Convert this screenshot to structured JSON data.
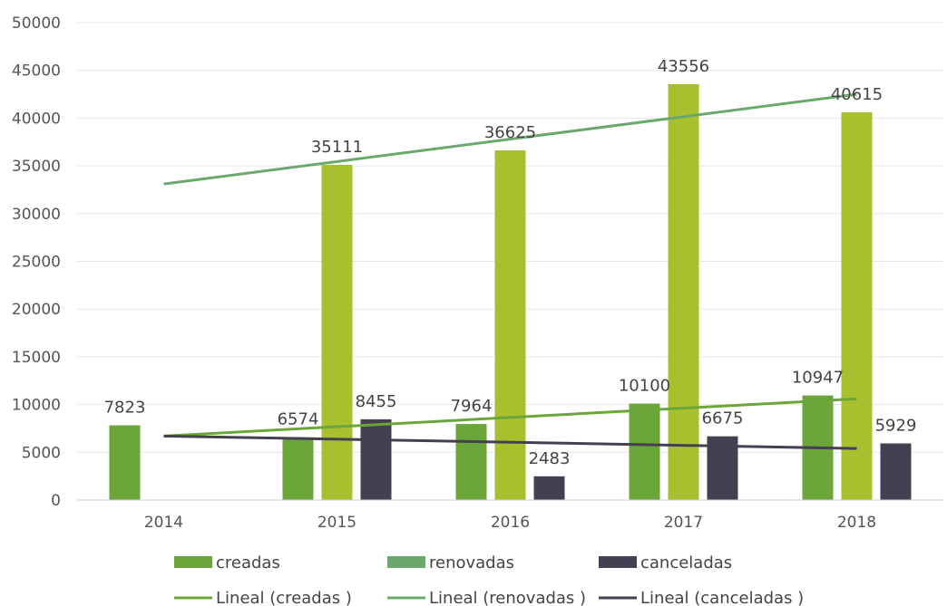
{
  "chart_data": {
    "type": "bar",
    "categories": [
      "2014",
      "2015",
      "2016",
      "2017",
      "2018"
    ],
    "ylim": [
      0,
      50000
    ],
    "yticks": [
      0,
      5000,
      10000,
      15000,
      20000,
      25000,
      30000,
      35000,
      40000,
      45000,
      50000
    ],
    "grid": true,
    "legend_position": "bottom",
    "series": [
      {
        "name": "creadas",
        "values": [
          7823,
          6574,
          7964,
          10100,
          10947
        ],
        "color": "#6aa63a"
      },
      {
        "name": "renovadas",
        "values": [
          null,
          35111,
          36625,
          43556,
          40615
        ],
        "color": "#a8bf2e",
        "legend_color": "#6aa86e"
      },
      {
        "name": "canceladas",
        "values": [
          null,
          8455,
          2483,
          6675,
          5929
        ],
        "color": "#453f52"
      }
    ],
    "trendlines": [
      {
        "name": "Lineal (creadas )",
        "series": "creadas",
        "start": 6700,
        "end": 10600,
        "color": "#6aa63a"
      },
      {
        "name": "Lineal (renovadas )",
        "series": "renovadas",
        "start": 33100,
        "end": 42500,
        "color": "#6aa86e"
      },
      {
        "name": "Lineal (canceladas )",
        "series": "canceladas",
        "start": 6700,
        "end": 5400,
        "color": "#453f52"
      }
    ]
  }
}
